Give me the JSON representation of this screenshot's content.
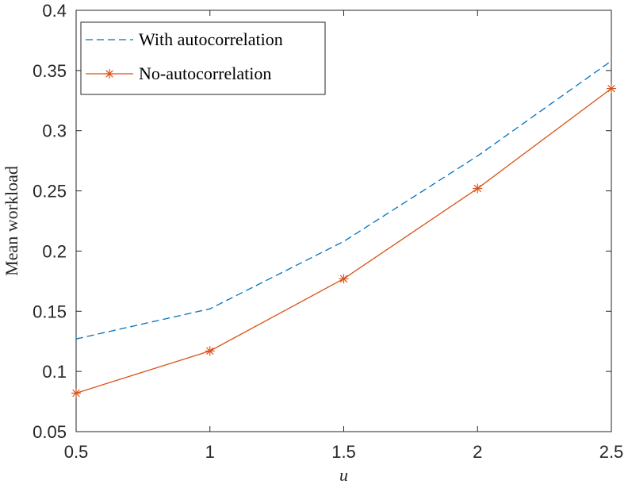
{
  "chart_data": {
    "type": "line",
    "xlabel": "u",
    "ylabel": "Mean workload",
    "xlim": [
      0.5,
      2.5
    ],
    "ylim": [
      0.05,
      0.4
    ],
    "xticks": [
      "0.5",
      "1",
      "1.5",
      "2",
      "2.5"
    ],
    "yticks": [
      "0.05",
      "0.1",
      "0.15",
      "0.2",
      "0.25",
      "0.3",
      "0.35",
      "0.4"
    ],
    "grid": false,
    "legend_position": "top-left",
    "series": [
      {
        "name": "With autocorrelation",
        "color": "#0072BD",
        "line_style": "dashed",
        "marker": "none",
        "x": [
          0.5,
          1,
          1.5,
          2,
          2.5
        ],
        "y": [
          0.127,
          0.152,
          0.208,
          0.279,
          0.358
        ]
      },
      {
        "name": "No-autocorrelation",
        "color": "#D95319",
        "line_style": "solid",
        "marker": "asterisk",
        "x": [
          0.5,
          1,
          1.5,
          2,
          2.5
        ],
        "y": [
          0.082,
          0.117,
          0.177,
          0.252,
          0.335
        ]
      }
    ]
  }
}
